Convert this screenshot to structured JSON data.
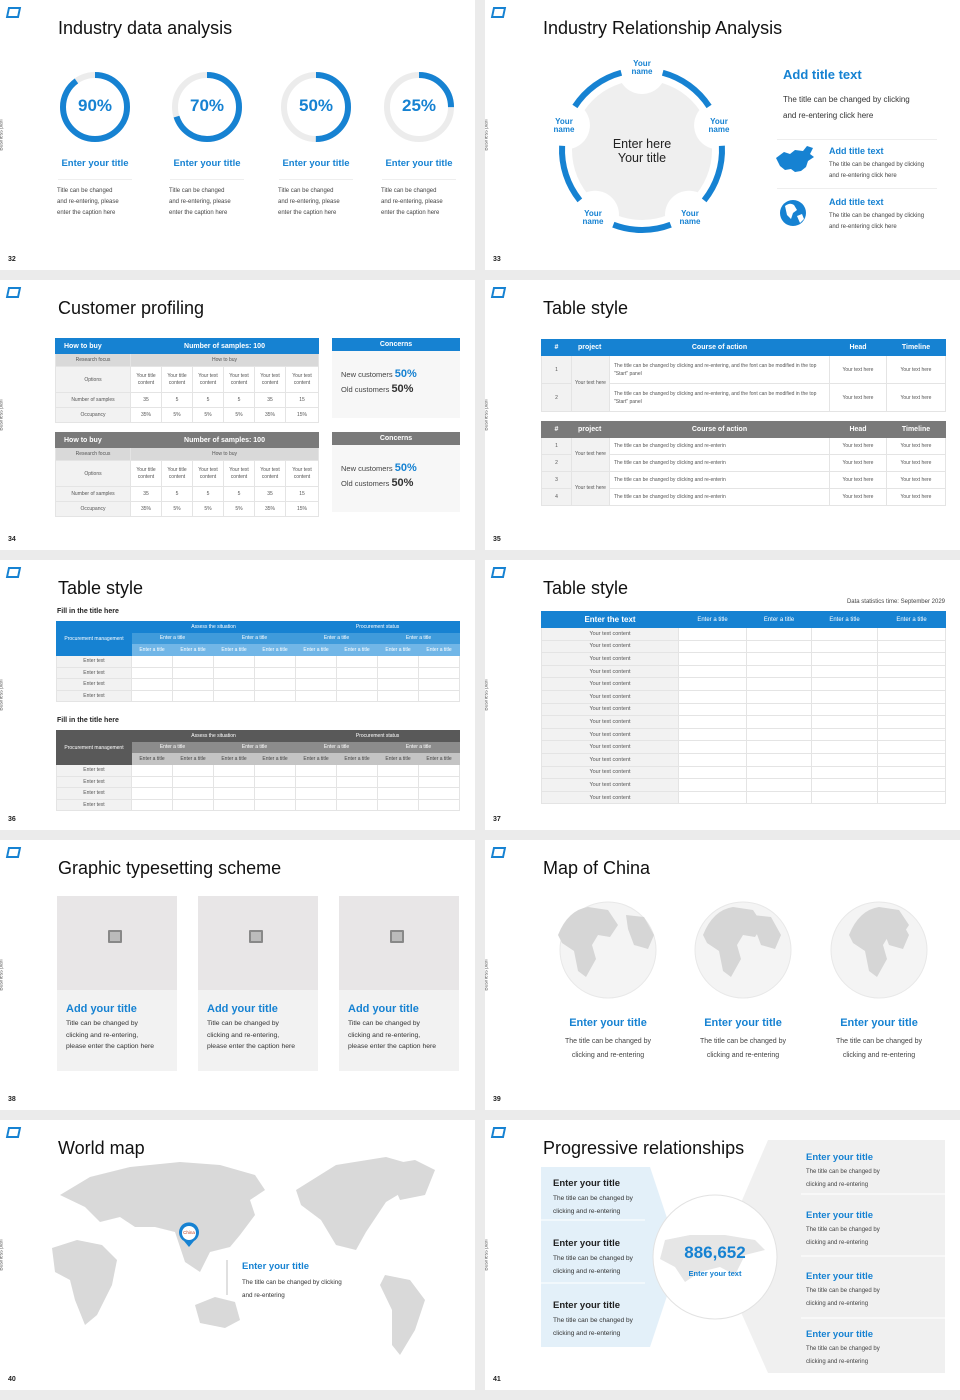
{
  "colors": {
    "accent": "#1682d2",
    "gray_header": "#7a7a7a",
    "panel_light_blue": "#e3f0f9",
    "panel_gray": "#f0f0f0"
  },
  "side_label": "Business plan",
  "s32": {
    "num": "32",
    "title": "Industry data analysis",
    "items": [
      {
        "pct": 90,
        "label": "90%",
        "title": "Enter your title",
        "caption": [
          "Title can be changed",
          "and re-entering, please",
          "enter the caption here"
        ]
      },
      {
        "pct": 70,
        "label": "70%",
        "title": "Enter your title",
        "caption": [
          "Title can be changed",
          "and re-entering, please",
          "enter the caption here"
        ]
      },
      {
        "pct": 50,
        "label": "50%",
        "title": "Enter your title",
        "caption": [
          "Title can be changed",
          "and re-entering, please",
          "enter the caption here"
        ]
      },
      {
        "pct": 25,
        "label": "25%",
        "title": "Enter your title",
        "caption": [
          "Title can be changed",
          "and re-entering, please",
          "enter the caption here"
        ]
      }
    ]
  },
  "s33": {
    "num": "33",
    "title": "Industry Relationship Analysis",
    "center": [
      "Enter here",
      "Your title"
    ],
    "node_label": [
      "Your",
      "name"
    ],
    "main_title": "Add title text",
    "main_text": [
      "The title can be changed by clicking",
      "and re-entering click here"
    ],
    "items": [
      {
        "icon": "china-map-icon",
        "title": "Add title text",
        "text": [
          "The title can be changed by clicking",
          "and re-entering click here"
        ]
      },
      {
        "icon": "globe-icon",
        "title": "Add title text",
        "text": [
          "The title can be changed by clicking",
          "and re-entering click here"
        ]
      }
    ]
  },
  "s34": {
    "num": "34",
    "title": "Customer profiling",
    "table": {
      "h1": "How to buy",
      "h2": "Number of samples: 100",
      "research_focus": "Research focus",
      "research_value": "How to buy",
      "rows": [
        {
          "label": "Options",
          "cells": [
            "Your title content",
            "Your title content",
            "Your text content",
            "Your text content",
            "Your text content",
            "Your text content"
          ]
        },
        {
          "label": "Number of samples",
          "cells": [
            "35",
            "5",
            "5",
            "5",
            "35",
            "15"
          ]
        },
        {
          "label": "Occupancy",
          "cells": [
            "35%",
            "5%",
            "5%",
            "5%",
            "35%",
            "15%"
          ]
        }
      ]
    },
    "concerns": {
      "title": "Concerns",
      "new_label": "New customers",
      "new_value": "50%",
      "old_label": "Old customers",
      "old_value": "50%"
    }
  },
  "s35": {
    "num": "35",
    "title": "Table style",
    "headers": [
      "#",
      "project",
      "Course of action",
      "Head",
      "Timeline"
    ],
    "table1": {
      "project": "Your text here",
      "rows": [
        {
          "n": "1",
          "text": "The title can be changed by clicking and re-entering, and the font can be modified in the top \"Start\" panel",
          "head": "Your text here",
          "time": "Your text here"
        },
        {
          "n": "2",
          "text": "The title can be changed by clicking and re-entering, and the font can be modified in the top \"Start\" panel",
          "head": "Your text here",
          "time": "Your text here"
        }
      ]
    },
    "table2": {
      "project": "Your text here",
      "rows": [
        {
          "n": "1",
          "text": "The title can be changed by clicking and re-enterin",
          "head": "Your text here",
          "time": "Your text here"
        },
        {
          "n": "2",
          "text": "The title can be changed by clicking and re-enterin",
          "head": "Your text here",
          "time": "Your text here"
        },
        {
          "n": "3",
          "text": "The title can be changed by clicking and re-enterin",
          "head": "Your text here",
          "time": "Your text here"
        },
        {
          "n": "4",
          "text": "The title can be changed by clicking and re-enterin",
          "head": "Your text here",
          "time": "Your text here"
        }
      ]
    }
  },
  "s36": {
    "num": "36",
    "title": "Table style",
    "subtitle": "Fill in the title here",
    "corner": "Procurement management",
    "group1": "Assess the situation",
    "group2": "Procurement status",
    "sub": "Enter a title",
    "row_label": "Enter text",
    "rows": 4
  },
  "s37": {
    "num": "37",
    "title": "Table style",
    "note": "Data statistics time: September 2029",
    "first_header": "Enter the text",
    "headers": [
      "Enter a title",
      "Enter a title",
      "Enter a title",
      "Enter a title"
    ],
    "row_label": "Your text content",
    "rows": 14
  },
  "s38": {
    "num": "38",
    "title": "Graphic typesetting scheme",
    "cards": [
      {
        "title": "Add your title",
        "text": [
          "Title can be changed by",
          "clicking and re-entering,",
          "please enter the caption here"
        ]
      },
      {
        "title": "Add your title",
        "text": [
          "Title can be changed by",
          "clicking and re-entering,",
          "please enter the caption here"
        ]
      },
      {
        "title": "Add your title",
        "text": [
          "Title can be changed by",
          "clicking and re-entering,",
          "please enter the caption here"
        ]
      }
    ]
  },
  "s39": {
    "num": "39",
    "title": "Map of China",
    "items": [
      {
        "title": "Enter your title",
        "text": [
          "The title can be changed by",
          "clicking and re-entering"
        ]
      },
      {
        "title": "Enter your title",
        "text": [
          "The title can be changed by",
          "clicking and re-entering"
        ]
      },
      {
        "title": "Enter your title",
        "text": [
          "The title can be changed by",
          "clicking and re-entering"
        ]
      }
    ]
  },
  "s40": {
    "num": "40",
    "title": "World map",
    "pin": "China",
    "item_title": "Enter your title",
    "item_text": [
      "The title can be changed by clicking",
      "and re-entering"
    ]
  },
  "s41": {
    "num": "41",
    "title": "Progressive relationships",
    "number": "886,652",
    "number_label": "Enter your text",
    "left": [
      {
        "title": "Enter your title",
        "text": [
          "The title can be changed by",
          "clicking and re-entering"
        ]
      },
      {
        "title": "Enter your title",
        "text": [
          "The title can be changed by",
          "clicking and re-entering"
        ]
      },
      {
        "title": "Enter your title",
        "text": [
          "The title can be changed by",
          "clicking and re-entering"
        ]
      }
    ],
    "right": [
      {
        "title": "Enter your title",
        "text": [
          "The title can be changed by",
          "clicking and re-entering"
        ]
      },
      {
        "title": "Enter your title",
        "text": [
          "The title can be changed by",
          "clicking and re-entering"
        ]
      },
      {
        "title": "Enter your title",
        "text": [
          "The title can be changed by",
          "clicking and re-entering"
        ]
      },
      {
        "title": "Enter your title",
        "text": [
          "The title can be changed by",
          "clicking and re-entering"
        ]
      }
    ]
  }
}
